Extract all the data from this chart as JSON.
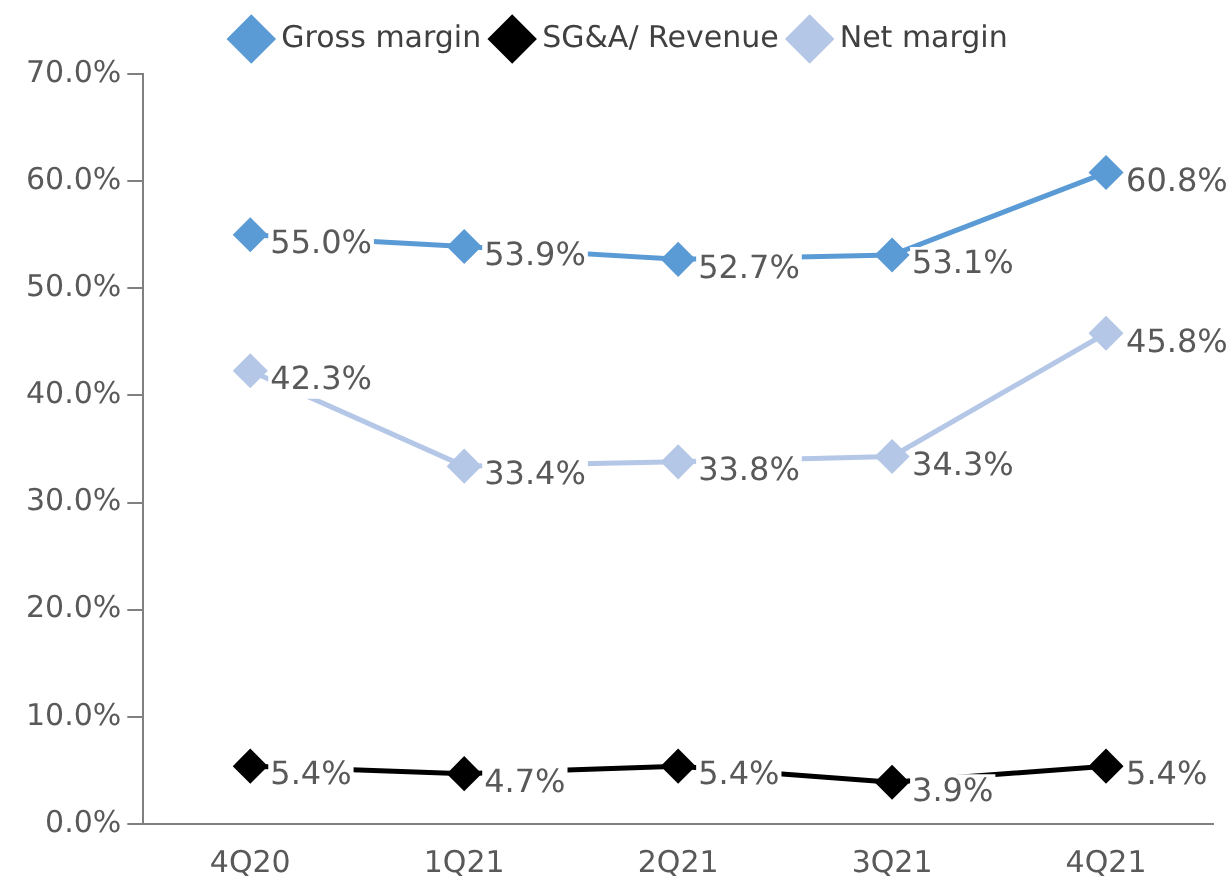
{
  "chart_data": {
    "type": "line",
    "categories": [
      "4Q20",
      "1Q21",
      "2Q21",
      "3Q21",
      "4Q21"
    ],
    "series": [
      {
        "name": "Gross margin",
        "color": "#5b9bd5",
        "values": [
          55.0,
          53.9,
          52.7,
          53.1,
          60.8
        ],
        "value_labels": [
          "55.0%",
          "53.9%",
          "52.7%",
          "53.1%",
          "60.8%"
        ]
      },
      {
        "name": "SG&A/ Revenue",
        "color": "#000000",
        "values": [
          5.4,
          4.7,
          5.4,
          3.9,
          5.4
        ],
        "value_labels": [
          "5.4%",
          "4.7%",
          "5.4%",
          "3.9%",
          "5.4%"
        ]
      },
      {
        "name": "Net margin",
        "color": "#b4c7e7",
        "values": [
          42.3,
          33.4,
          33.8,
          34.3,
          45.8
        ],
        "value_labels": [
          "42.3%",
          "33.4%",
          "33.8%",
          "34.3%",
          "45.8%"
        ]
      }
    ],
    "ylim": [
      0,
      70
    ],
    "yticks": [
      {
        "value": 0,
        "label": "0.0%"
      },
      {
        "value": 10,
        "label": "10.0%"
      },
      {
        "value": 20,
        "label": "20.0%"
      },
      {
        "value": 30,
        "label": "30.0%"
      },
      {
        "value": 40,
        "label": "40.0%"
      },
      {
        "value": 50,
        "label": "50.0%"
      },
      {
        "value": 60,
        "label": "60.0%"
      },
      {
        "value": 70,
        "label": "70.0%"
      }
    ],
    "grid": false,
    "legend": "top",
    "marker": "diamond",
    "line_style": "solid"
  }
}
